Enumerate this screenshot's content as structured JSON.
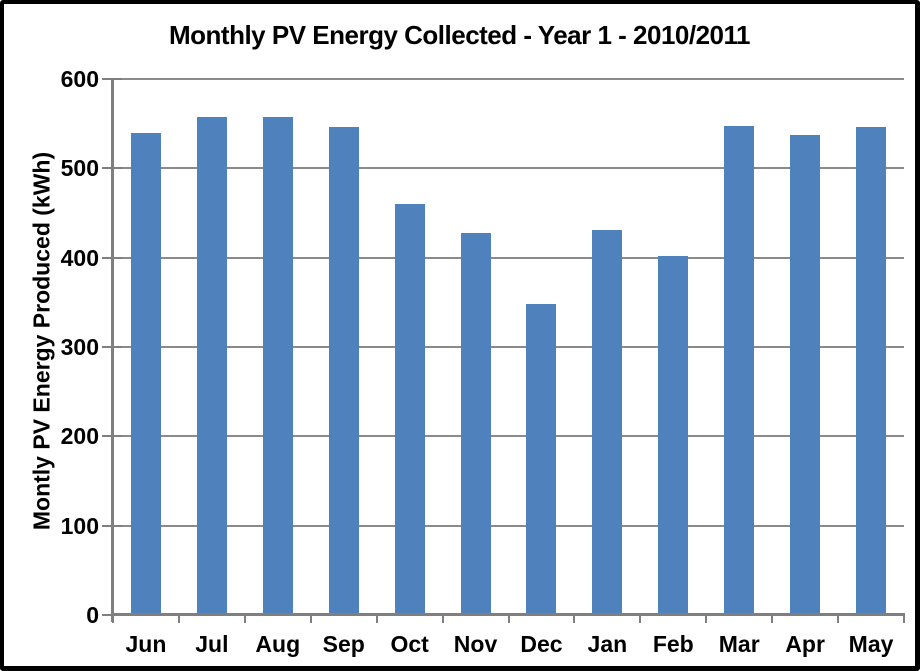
{
  "chart_data": {
    "type": "bar",
    "title": "Monthly PV Energy Collected - Year 1 - 2010/2011",
    "ylabel": "Montly PV Energy Produced (kWh)",
    "xlabel": "",
    "categories": [
      "Jun",
      "Jul",
      "Aug",
      "Sep",
      "Oct",
      "Nov",
      "Dec",
      "Jan",
      "Feb",
      "Mar",
      "Apr",
      "May"
    ],
    "values": [
      540,
      558,
      558,
      546,
      460,
      428,
      348,
      431,
      402,
      547,
      537,
      546
    ],
    "ylim": [
      0,
      600
    ],
    "yticks": [
      0,
      100,
      200,
      300,
      400,
      500,
      600
    ],
    "grid": true,
    "legend": false,
    "colors": {
      "bar": "#4f81bd",
      "gridline": "#8a8a8a",
      "axis": "#7f7f7f",
      "text": "#000000",
      "background": "#ffffff",
      "frame": "#000000"
    }
  }
}
